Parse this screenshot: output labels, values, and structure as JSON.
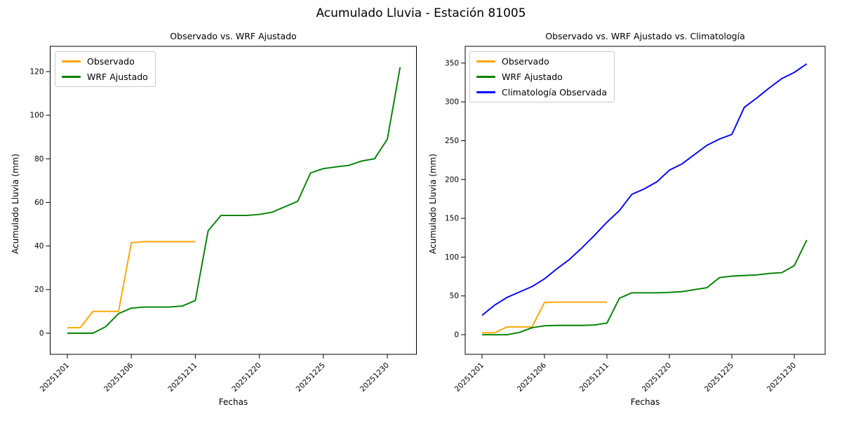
{
  "suptitle": "Acumulado Lluvia - Estación 81005",
  "colors": {
    "observado": "#ffa500",
    "wrf_ajustado": "#008000",
    "climatologia_observada": "#0000ff"
  },
  "chart_data": [
    {
      "type": "line",
      "title": "Observado vs. WRF Ajustado",
      "xlabel": "Fechas",
      "ylabel": "Acumulado Lluvia (mm)",
      "grid": false,
      "legend_position": "upper left",
      "n_points": 27,
      "xtick_positions": [
        0,
        5,
        10,
        15,
        20,
        25
      ],
      "xtick_labels": [
        "20251201",
        "20251206",
        "20251211",
        "20251220",
        "20251225",
        "20251230"
      ],
      "xtick_rotation": 45,
      "yticks": [
        0,
        20,
        40,
        60,
        80,
        100,
        120
      ],
      "ylim": [
        -9.7,
        131.6
      ],
      "series": [
        {
          "name": "Observado",
          "color": "#ffa500",
          "values": [
            2.5,
            2.5,
            10,
            10,
            10,
            41.5,
            42,
            42,
            42,
            42,
            42
          ]
        },
        {
          "name": "WRF Ajustado",
          "color": "#008000",
          "values": [
            0,
            0,
            0,
            3,
            9,
            11.5,
            12,
            12,
            12,
            12.5,
            15,
            47,
            54,
            54,
            54,
            54.5,
            55.5,
            58,
            60.5,
            73.5,
            75.5,
            76.3,
            77,
            79,
            80,
            89,
            122
          ]
        }
      ]
    },
    {
      "type": "line",
      "title": "Observado vs. WRF Ajustado vs. Climatología",
      "xlabel": "Fechas",
      "ylabel": "Acumulado Lluvia (mm)",
      "grid": false,
      "legend_position": "upper left",
      "n_points": 27,
      "xtick_positions": [
        0,
        5,
        10,
        15,
        20,
        25
      ],
      "xtick_labels": [
        "20251201",
        "20251206",
        "20251211",
        "20251220",
        "20251225",
        "20251230"
      ],
      "xtick_rotation": 45,
      "yticks": [
        0,
        50,
        100,
        150,
        200,
        250,
        300,
        350
      ],
      "ylim": [
        -25.3,
        371.6
      ],
      "series": [
        {
          "name": "Observado",
          "color": "#ffa500",
          "values": [
            2.5,
            2.5,
            10,
            10,
            10,
            41.5,
            42,
            42,
            42,
            42,
            42
          ]
        },
        {
          "name": "WRF Ajustado",
          "color": "#008000",
          "values": [
            0,
            0,
            0,
            3,
            9,
            11.5,
            12,
            12,
            12,
            12.5,
            15,
            47,
            54,
            54,
            54,
            54.5,
            55.5,
            58,
            60.5,
            73.5,
            75.5,
            76.3,
            77,
            79,
            80,
            89,
            122
          ]
        },
        {
          "name": "Climatología Observada",
          "color": "#0000ff",
          "values": [
            25,
            38,
            48,
            55,
            62,
            72,
            85,
            97,
            112,
            128,
            145,
            160,
            181,
            188,
            197,
            212,
            220,
            232,
            244,
            252,
            258,
            293,
            305,
            318,
            330,
            338,
            349
          ]
        }
      ]
    }
  ]
}
